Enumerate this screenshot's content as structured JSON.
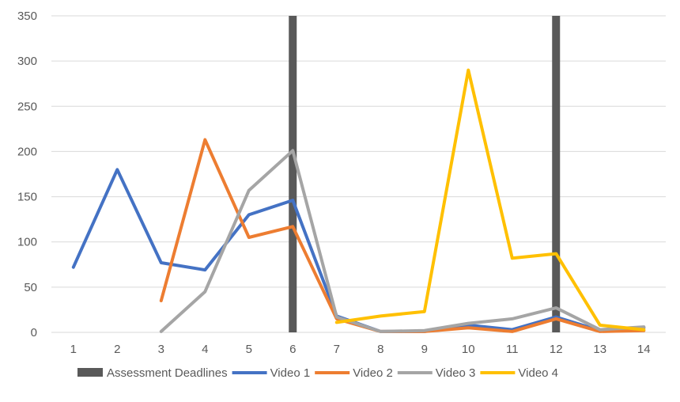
{
  "chart_data": {
    "type": "line",
    "title": "",
    "xlabel": "",
    "ylabel": "",
    "categories": [
      "1",
      "2",
      "3",
      "4",
      "5",
      "6",
      "7",
      "8",
      "9",
      "10",
      "11",
      "12",
      "13",
      "14"
    ],
    "ylim": [
      0,
      350
    ],
    "yticks": [
      0,
      50,
      100,
      150,
      200,
      250,
      300,
      350
    ],
    "grid": "horizontal",
    "legend_position": "bottom",
    "deadlines": {
      "name": "Assessment Deadlines",
      "color": "#595959",
      "at": [
        "6",
        "12"
      ]
    },
    "series": [
      {
        "name": "Video 1",
        "color": "#4472C4",
        "values": [
          72,
          180,
          77,
          69,
          130,
          146,
          18,
          1,
          1,
          8,
          3,
          17,
          2,
          5
        ]
      },
      {
        "name": "Video 2",
        "color": "#ED7D31",
        "values": [
          null,
          null,
          35,
          213,
          105,
          117,
          15,
          1,
          1,
          5,
          1,
          15,
          1,
          2
        ]
      },
      {
        "name": "Video 3",
        "color": "#A5A5A5",
        "values": [
          null,
          null,
          1,
          45,
          157,
          201,
          17,
          1,
          2,
          10,
          15,
          27,
          3,
          6
        ]
      },
      {
        "name": "Video 4",
        "color": "#FFC000",
        "values": [
          null,
          null,
          null,
          null,
          null,
          null,
          11,
          18,
          23,
          290,
          82,
          87,
          8,
          3
        ]
      }
    ]
  }
}
